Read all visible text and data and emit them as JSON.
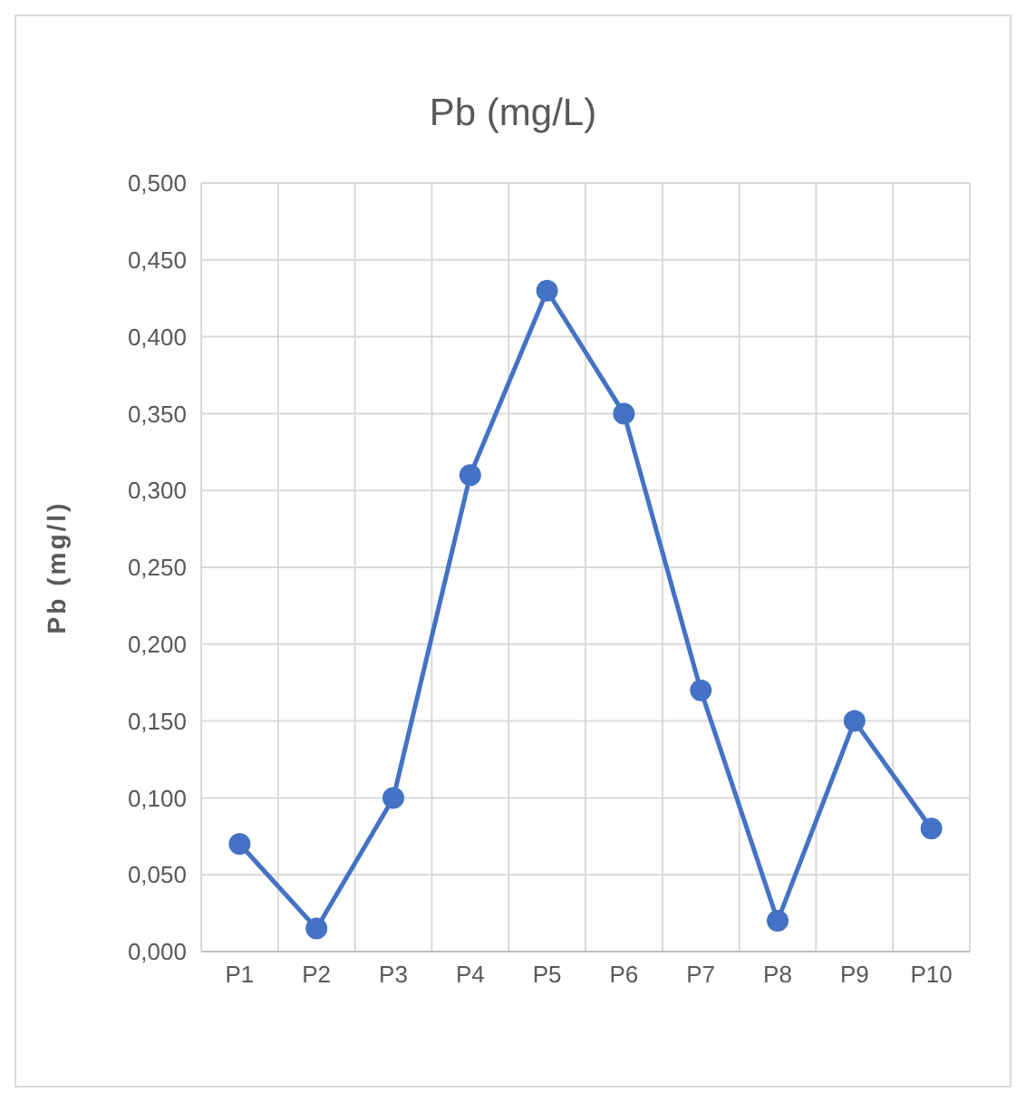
{
  "chart_data": {
    "type": "line",
    "title": "Pb (mg/L)",
    "ylabel": "Pb (mg/l)",
    "categories": [
      "P1",
      "P2",
      "P3",
      "P4",
      "P5",
      "P6",
      "P7",
      "P8",
      "P9",
      "P10"
    ],
    "series": [
      {
        "color": "#4472c4",
        "values": [
          0.07,
          0.015,
          0.1,
          0.31,
          0.43,
          0.35,
          0.17,
          0.02,
          0.15,
          0.08
        ]
      }
    ],
    "ylim": [
      0,
      0.5
    ],
    "yticks": [
      {
        "value": 0,
        "label": "0,000"
      },
      {
        "value": 0.05,
        "label": "0,050"
      },
      {
        "value": 0.1,
        "label": "0,100"
      },
      {
        "value": 0.15,
        "label": "0,150"
      },
      {
        "value": 0.2,
        "label": "0,200"
      },
      {
        "value": 0.25,
        "label": "0,250"
      },
      {
        "value": 0.3,
        "label": "0,300"
      },
      {
        "value": 0.35,
        "label": "0,350"
      },
      {
        "value": 0.4,
        "label": "0,400"
      },
      {
        "value": 0.45,
        "label": "0,450"
      },
      {
        "value": 0.5,
        "label": "0,500"
      }
    ],
    "grid": true,
    "marker": "circle",
    "line_style": "solid",
    "legend": false
  }
}
